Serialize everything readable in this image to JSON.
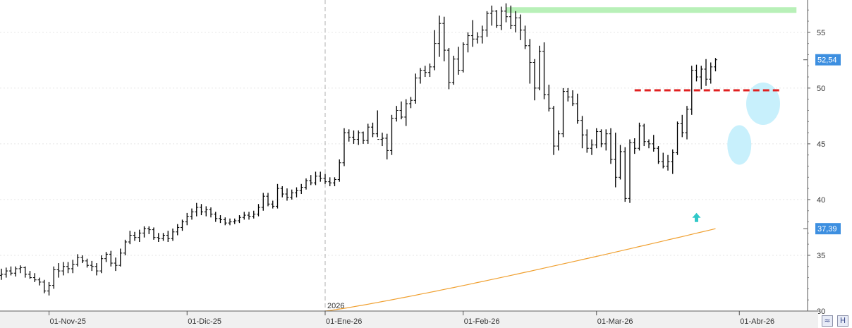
{
  "chart_data": {
    "type": "ohlc",
    "y_axis": {
      "ticks": [
        30,
        35,
        40,
        45,
        50,
        55
      ],
      "range": [
        30,
        57.9
      ]
    },
    "x_axis": {
      "labels": [
        "01-Nov-25",
        "01-Dic-25",
        "01-Ene-26",
        "01-Feb-26",
        "01-Mar-26",
        "01-Abr-26"
      ],
      "year_marker": "2026"
    },
    "price_tags": [
      {
        "value": 52.54,
        "label": "52,54",
        "color": "#3d8fe0"
      },
      {
        "value": 37.39,
        "label": "37,39",
        "color": "#3d8fe0"
      }
    ],
    "moving_average": {
      "color": "#f0a030",
      "start": 30.0,
      "end": 37.39
    },
    "resistance_line": {
      "value": 57.0,
      "color": "#b8f0b8"
    },
    "breakout_line": {
      "value": 49.8,
      "color": "#e02020"
    },
    "annotations": {
      "arrow_color": "#30c8c8",
      "ellipse_color": "#c8f0fc"
    },
    "bars": [
      [
        33.2,
        33.8,
        32.8,
        33.3
      ],
      [
        33.3,
        33.9,
        33.0,
        33.6
      ],
      [
        33.6,
        34.0,
        33.2,
        33.4
      ],
      [
        33.4,
        34.0,
        33.1,
        33.8
      ],
      [
        33.8,
        34.1,
        33.4,
        33.9
      ],
      [
        33.9,
        34.0,
        33.0,
        33.3
      ],
      [
        33.3,
        33.6,
        32.9,
        33.0
      ],
      [
        33.0,
        33.4,
        32.6,
        32.8
      ],
      [
        32.8,
        33.0,
        32.3,
        32.6
      ],
      [
        32.6,
        32.8,
        31.6,
        31.8
      ],
      [
        31.8,
        32.6,
        31.4,
        32.3
      ],
      [
        32.3,
        34.0,
        32.0,
        33.7
      ],
      [
        33.7,
        34.3,
        33.0,
        33.6
      ],
      [
        33.6,
        34.4,
        33.2,
        34.0
      ],
      [
        34.0,
        34.4,
        33.4,
        33.8
      ],
      [
        33.8,
        34.6,
        33.4,
        34.2
      ],
      [
        34.2,
        35.1,
        34.0,
        34.8
      ],
      [
        34.8,
        35.0,
        34.3,
        34.5
      ],
      [
        34.5,
        34.7,
        33.9,
        34.1
      ],
      [
        34.1,
        34.5,
        33.6,
        34.0
      ],
      [
        34.0,
        34.3,
        33.2,
        33.6
      ],
      [
        33.6,
        35.0,
        33.4,
        34.7
      ],
      [
        34.7,
        35.3,
        34.4,
        35.1
      ],
      [
        35.1,
        35.4,
        34.0,
        34.3
      ],
      [
        34.3,
        34.8,
        33.6,
        34.1
      ],
      [
        34.1,
        35.6,
        34.0,
        35.2
      ],
      [
        35.2,
        36.4,
        35.0,
        36.2
      ],
      [
        36.2,
        37.2,
        36.0,
        36.8
      ],
      [
        36.8,
        37.1,
        36.3,
        36.6
      ],
      [
        36.6,
        37.3,
        36.2,
        37.0
      ],
      [
        37.0,
        37.6,
        36.6,
        37.4
      ],
      [
        37.4,
        37.6,
        36.9,
        37.3
      ],
      [
        37.3,
        37.5,
        36.4,
        36.6
      ],
      [
        36.6,
        37.0,
        36.2,
        36.5
      ],
      [
        36.5,
        37.0,
        36.3,
        36.8
      ],
      [
        36.8,
        37.2,
        36.2,
        36.5
      ],
      [
        36.5,
        37.4,
        36.3,
        37.1
      ],
      [
        37.1,
        37.8,
        36.8,
        37.5
      ],
      [
        37.5,
        38.2,
        37.2,
        38.0
      ],
      [
        38.0,
        38.8,
        37.7,
        38.5
      ],
      [
        38.5,
        39.2,
        38.2,
        38.9
      ],
      [
        38.9,
        39.7,
        38.5,
        39.3
      ],
      [
        39.3,
        39.6,
        38.6,
        38.9
      ],
      [
        38.9,
        39.4,
        38.5,
        39.1
      ],
      [
        39.1,
        39.3,
        38.4,
        38.7
      ],
      [
        38.7,
        38.9,
        38.0,
        38.3
      ],
      [
        38.3,
        38.6,
        37.9,
        38.2
      ],
      [
        38.2,
        38.4,
        37.7,
        37.9
      ],
      [
        37.9,
        38.3,
        37.7,
        38.0
      ],
      [
        38.0,
        38.3,
        37.8,
        38.1
      ],
      [
        38.1,
        38.6,
        37.9,
        38.4
      ],
      [
        38.4,
        38.9,
        38.2,
        38.6
      ],
      [
        38.6,
        38.9,
        38.2,
        38.5
      ],
      [
        38.5,
        39.0,
        38.3,
        38.7
      ],
      [
        38.7,
        39.6,
        38.5,
        39.3
      ],
      [
        39.3,
        40.6,
        39.0,
        40.3
      ],
      [
        40.3,
        40.6,
        39.4,
        39.6
      ],
      [
        39.6,
        39.9,
        39.2,
        39.4
      ],
      [
        39.4,
        41.4,
        39.2,
        41.0
      ],
      [
        41.0,
        41.2,
        40.2,
        40.5
      ],
      [
        40.5,
        41.0,
        39.9,
        40.2
      ],
      [
        40.2,
        40.9,
        40.0,
        40.6
      ],
      [
        40.6,
        41.1,
        40.2,
        40.8
      ],
      [
        40.8,
        41.4,
        40.5,
        41.1
      ],
      [
        41.1,
        41.9,
        40.9,
        41.7
      ],
      [
        41.7,
        42.2,
        41.3,
        41.5
      ],
      [
        41.5,
        42.5,
        41.3,
        42.1
      ],
      [
        42.1,
        42.5,
        41.6,
        41.9
      ],
      [
        41.9,
        42.3,
        41.4,
        41.6
      ],
      [
        41.6,
        42.0,
        41.2,
        41.5
      ],
      [
        41.5,
        42.0,
        41.2,
        41.8
      ],
      [
        41.8,
        43.6,
        41.6,
        43.3
      ],
      [
        43.3,
        46.4,
        43.0,
        46.0
      ],
      [
        46.0,
        46.3,
        45.2,
        45.6
      ],
      [
        45.6,
        46.2,
        45.0,
        45.4
      ],
      [
        45.4,
        46.2,
        44.9,
        46.0
      ],
      [
        46.0,
        46.1,
        45.0,
        45.3
      ],
      [
        45.3,
        46.8,
        45.0,
        46.5
      ],
      [
        46.5,
        46.9,
        45.6,
        45.9
      ],
      [
        45.9,
        48.0,
        45.6,
        45.4
      ],
      [
        45.4,
        46.0,
        44.8,
        45.5
      ],
      [
        45.5,
        45.9,
        43.6,
        44.4
      ],
      [
        44.4,
        47.6,
        44.0,
        47.3
      ],
      [
        47.3,
        48.4,
        47.0,
        48.0
      ],
      [
        48.0,
        48.8,
        47.2,
        47.4
      ],
      [
        47.4,
        49.0,
        46.6,
        48.6
      ],
      [
        48.6,
        49.2,
        48.2,
        48.9
      ],
      [
        48.9,
        51.3,
        48.6,
        50.9
      ],
      [
        50.9,
        51.8,
        50.4,
        51.6
      ],
      [
        51.6,
        52.0,
        51.0,
        51.4
      ],
      [
        51.4,
        52.2,
        51.0,
        51.9
      ],
      [
        51.9,
        55.2,
        51.6,
        54.0
      ],
      [
        54.0,
        56.5,
        52.8,
        55.8
      ],
      [
        55.8,
        56.4,
        52.4,
        53.4
      ],
      [
        53.4,
        53.6,
        49.9,
        50.5
      ],
      [
        50.5,
        52.9,
        50.3,
        52.6
      ],
      [
        52.6,
        53.7,
        51.2,
        51.6
      ],
      [
        51.6,
        54.1,
        51.4,
        53.9
      ],
      [
        53.9,
        55.0,
        53.2,
        54.7
      ],
      [
        54.7,
        56.1,
        53.7,
        54.4
      ],
      [
        54.4,
        55.0,
        54.0,
        54.6
      ],
      [
        54.6,
        55.6,
        54.0,
        55.2
      ],
      [
        55.2,
        56.9,
        54.6,
        56.7
      ],
      [
        56.7,
        57.4,
        55.6,
        56.9
      ],
      [
        56.9,
        57.0,
        55.4,
        55.6
      ],
      [
        55.6,
        57.3,
        55.2,
        56.9
      ],
      [
        56.9,
        57.6,
        55.9,
        56.4
      ],
      [
        56.4,
        57.4,
        55.3,
        55.6
      ],
      [
        55.6,
        56.9,
        55.0,
        56.3
      ],
      [
        56.3,
        56.6,
        54.3,
        55.2
      ],
      [
        55.2,
        55.6,
        53.5,
        53.8
      ],
      [
        53.8,
        54.4,
        50.4,
        52.3
      ],
      [
        52.3,
        52.6,
        48.9,
        50.0
      ],
      [
        50.0,
        53.8,
        49.8,
        53.3
      ],
      [
        53.3,
        54.1,
        49.0,
        49.4
      ],
      [
        49.4,
        50.3,
        47.9,
        48.2
      ],
      [
        48.2,
        48.4,
        44.0,
        44.8
      ],
      [
        44.8,
        46.2,
        44.4,
        45.9
      ],
      [
        45.9,
        50.0,
        45.6,
        49.7
      ],
      [
        49.7,
        50.0,
        48.8,
        49.2
      ],
      [
        49.2,
        49.8,
        48.4,
        48.6
      ],
      [
        48.6,
        49.5,
        46.8,
        47.1
      ],
      [
        47.1,
        47.5,
        44.6,
        45.8
      ],
      [
        45.8,
        46.3,
        44.2,
        44.6
      ],
      [
        44.6,
        45.4,
        44.0,
        44.9
      ],
      [
        44.9,
        46.4,
        44.6,
        46.1
      ],
      [
        46.1,
        46.3,
        44.7,
        45.0
      ],
      [
        45.0,
        46.3,
        44.4,
        45.9
      ],
      [
        45.9,
        46.4,
        43.2,
        43.6
      ],
      [
        43.6,
        46.0,
        41.1,
        42.0
      ],
      [
        42.0,
        44.9,
        41.8,
        44.3
      ],
      [
        44.3,
        44.7,
        39.8,
        40.1
      ],
      [
        40.1,
        45.4,
        39.7,
        45.1
      ],
      [
        45.1,
        45.5,
        44.1,
        44.6
      ],
      [
        44.6,
        46.9,
        44.4,
        46.6
      ],
      [
        46.6,
        46.8,
        44.8,
        45.2
      ],
      [
        45.2,
        45.4,
        44.6,
        45.0
      ],
      [
        45.0,
        45.8,
        44.3,
        44.6
      ],
      [
        44.6,
        44.8,
        43.2,
        43.4
      ],
      [
        43.4,
        44.2,
        42.8,
        43.0
      ],
      [
        43.0,
        44.0,
        42.6,
        43.4
      ],
      [
        43.4,
        44.5,
        42.3,
        44.2
      ],
      [
        44.2,
        47.0,
        44.0,
        46.8
      ],
      [
        46.8,
        47.6,
        45.6,
        46.0
      ],
      [
        46.0,
        48.4,
        45.4,
        48.1
      ],
      [
        48.1,
        52.0,
        47.6,
        51.6
      ],
      [
        51.6,
        52.1,
        50.6,
        51.0
      ],
      [
        51.0,
        52.0,
        49.9,
        51.7
      ],
      [
        51.7,
        52.6,
        50.2,
        50.8
      ],
      [
        50.8,
        52.3,
        50.4,
        51.9
      ],
      [
        51.9,
        52.7,
        51.5,
        52.54
      ]
    ]
  },
  "corner_buttons": [
    {
      "name": "settings-menu-icon",
      "glyph": "≈"
    },
    {
      "name": "save-icon",
      "glyph": "H"
    }
  ]
}
